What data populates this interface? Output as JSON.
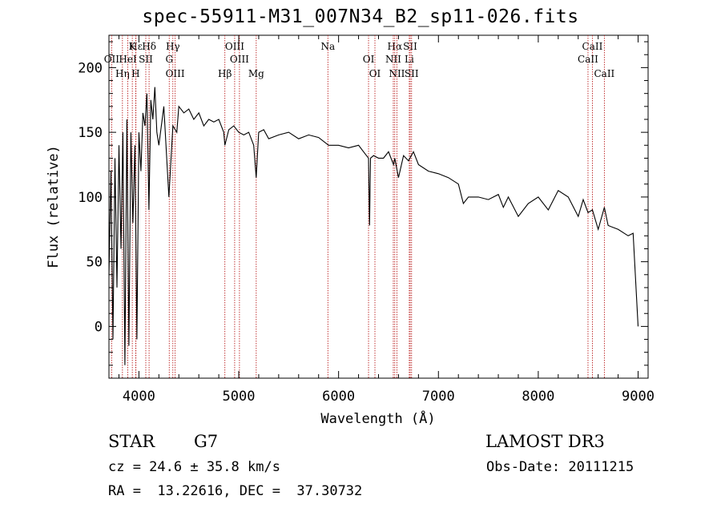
{
  "chart_data": {
    "type": "line",
    "title": "spec-55911-M31_007N34_B2_sp11-026.fits",
    "xlabel": "Wavelength (Å)",
    "ylabel": "Flux (relative)",
    "xlim": [
      3700,
      9100
    ],
    "ylim": [
      -40,
      225
    ],
    "x_ticks": [
      4000,
      5000,
      6000,
      7000,
      8000,
      9000
    ],
    "y_ticks": [
      0,
      50,
      100,
      150,
      200
    ],
    "grid": false,
    "series": [
      {
        "name": "flux",
        "x": [
          3700,
          3720,
          3740,
          3760,
          3780,
          3800,
          3820,
          3840,
          3860,
          3880,
          3900,
          3920,
          3940,
          3960,
          3980,
          4000,
          4020,
          4040,
          4060,
          4080,
          4100,
          4120,
          4140,
          4160,
          4180,
          4200,
          4250,
          4300,
          4340,
          4380,
          4400,
          4450,
          4500,
          4550,
          4600,
          4650,
          4700,
          4750,
          4800,
          4850,
          4861,
          4900,
          4950,
          5000,
          5050,
          5100,
          5150,
          5175,
          5200,
          5250,
          5300,
          5400,
          5500,
          5600,
          5700,
          5800,
          5900,
          6000,
          6100,
          6200,
          6250,
          6300,
          6310,
          6320,
          6350,
          6400,
          6450,
          6500,
          6550,
          6563,
          6600,
          6650,
          6700,
          6750,
          6800,
          6900,
          7000,
          7100,
          7200,
          7250,
          7300,
          7400,
          7500,
          7600,
          7650,
          7700,
          7800,
          7900,
          8000,
          8100,
          8200,
          8300,
          8400,
          8450,
          8498,
          8542,
          8600,
          8662,
          8700,
          8800,
          8900,
          8950,
          9000
        ],
        "values": [
          40,
          120,
          -10,
          130,
          30,
          140,
          60,
          150,
          -30,
          160,
          -15,
          150,
          80,
          140,
          -10,
          150,
          120,
          165,
          155,
          180,
          90,
          175,
          160,
          185,
          150,
          140,
          170,
          100,
          155,
          150,
          170,
          165,
          168,
          160,
          165,
          155,
          160,
          158,
          160,
          150,
          140,
          152,
          155,
          150,
          148,
          150,
          140,
          115,
          150,
          152,
          145,
          148,
          150,
          145,
          148,
          146,
          140,
          140,
          138,
          140,
          135,
          130,
          78,
          130,
          132,
          130,
          130,
          135,
          125,
          130,
          115,
          132,
          128,
          135,
          125,
          120,
          118,
          115,
          110,
          95,
          100,
          100,
          98,
          102,
          92,
          100,
          85,
          95,
          100,
          90,
          105,
          100,
          85,
          98,
          88,
          90,
          75,
          92,
          78,
          75,
          70,
          72,
          0
        ]
      }
    ],
    "lines": [
      {
        "label": "Hε",
        "wl": 3970
      },
      {
        "label": "OII",
        "wl": 3727
      },
      {
        "label": "Hη",
        "wl": 3835
      },
      {
        "label": "K",
        "wl": 3934
      },
      {
        "label": "HeI",
        "wl": 3889
      },
      {
        "label": "H",
        "wl": 3968
      },
      {
        "label": "Hδ",
        "wl": 4102
      },
      {
        "label": "SII",
        "wl": 4069
      },
      {
        "label": "OIII",
        "wl": 4363
      },
      {
        "label": "Hγ",
        "wl": 4340
      },
      {
        "label": "G",
        "wl": 4304
      },
      {
        "label": "Hβ",
        "wl": 4861
      },
      {
        "label": "OIII",
        "wl": 4959
      },
      {
        "label": "OIII",
        "wl": 5007
      },
      {
        "label": "Mg",
        "wl": 5175
      },
      {
        "label": "Na",
        "wl": 5893
      },
      {
        "label": "OI",
        "wl": 6300
      },
      {
        "label": "OI",
        "wl": 6364
      },
      {
        "label": "Hα",
        "wl": 6563
      },
      {
        "label": "NII",
        "wl": 6548
      },
      {
        "label": "NII",
        "wl": 6584
      },
      {
        "label": "SII",
        "wl": 6717
      },
      {
        "label": "Li",
        "wl": 6708
      },
      {
        "label": "SII",
        "wl": 6731
      },
      {
        "label": "CaII",
        "wl": 8542
      },
      {
        "label": "CaII",
        "wl": 8498
      },
      {
        "label": "CaII",
        "wl": 8662
      }
    ]
  },
  "info": {
    "object_class": "STAR",
    "subclass": "G7",
    "survey": "LAMOST DR3",
    "cz": "cz = 24.6 ± 35.8 km/s",
    "obs_date": "Obs-Date: 20111215",
    "coords": "RA =  13.22616, DEC =  37.30732"
  }
}
